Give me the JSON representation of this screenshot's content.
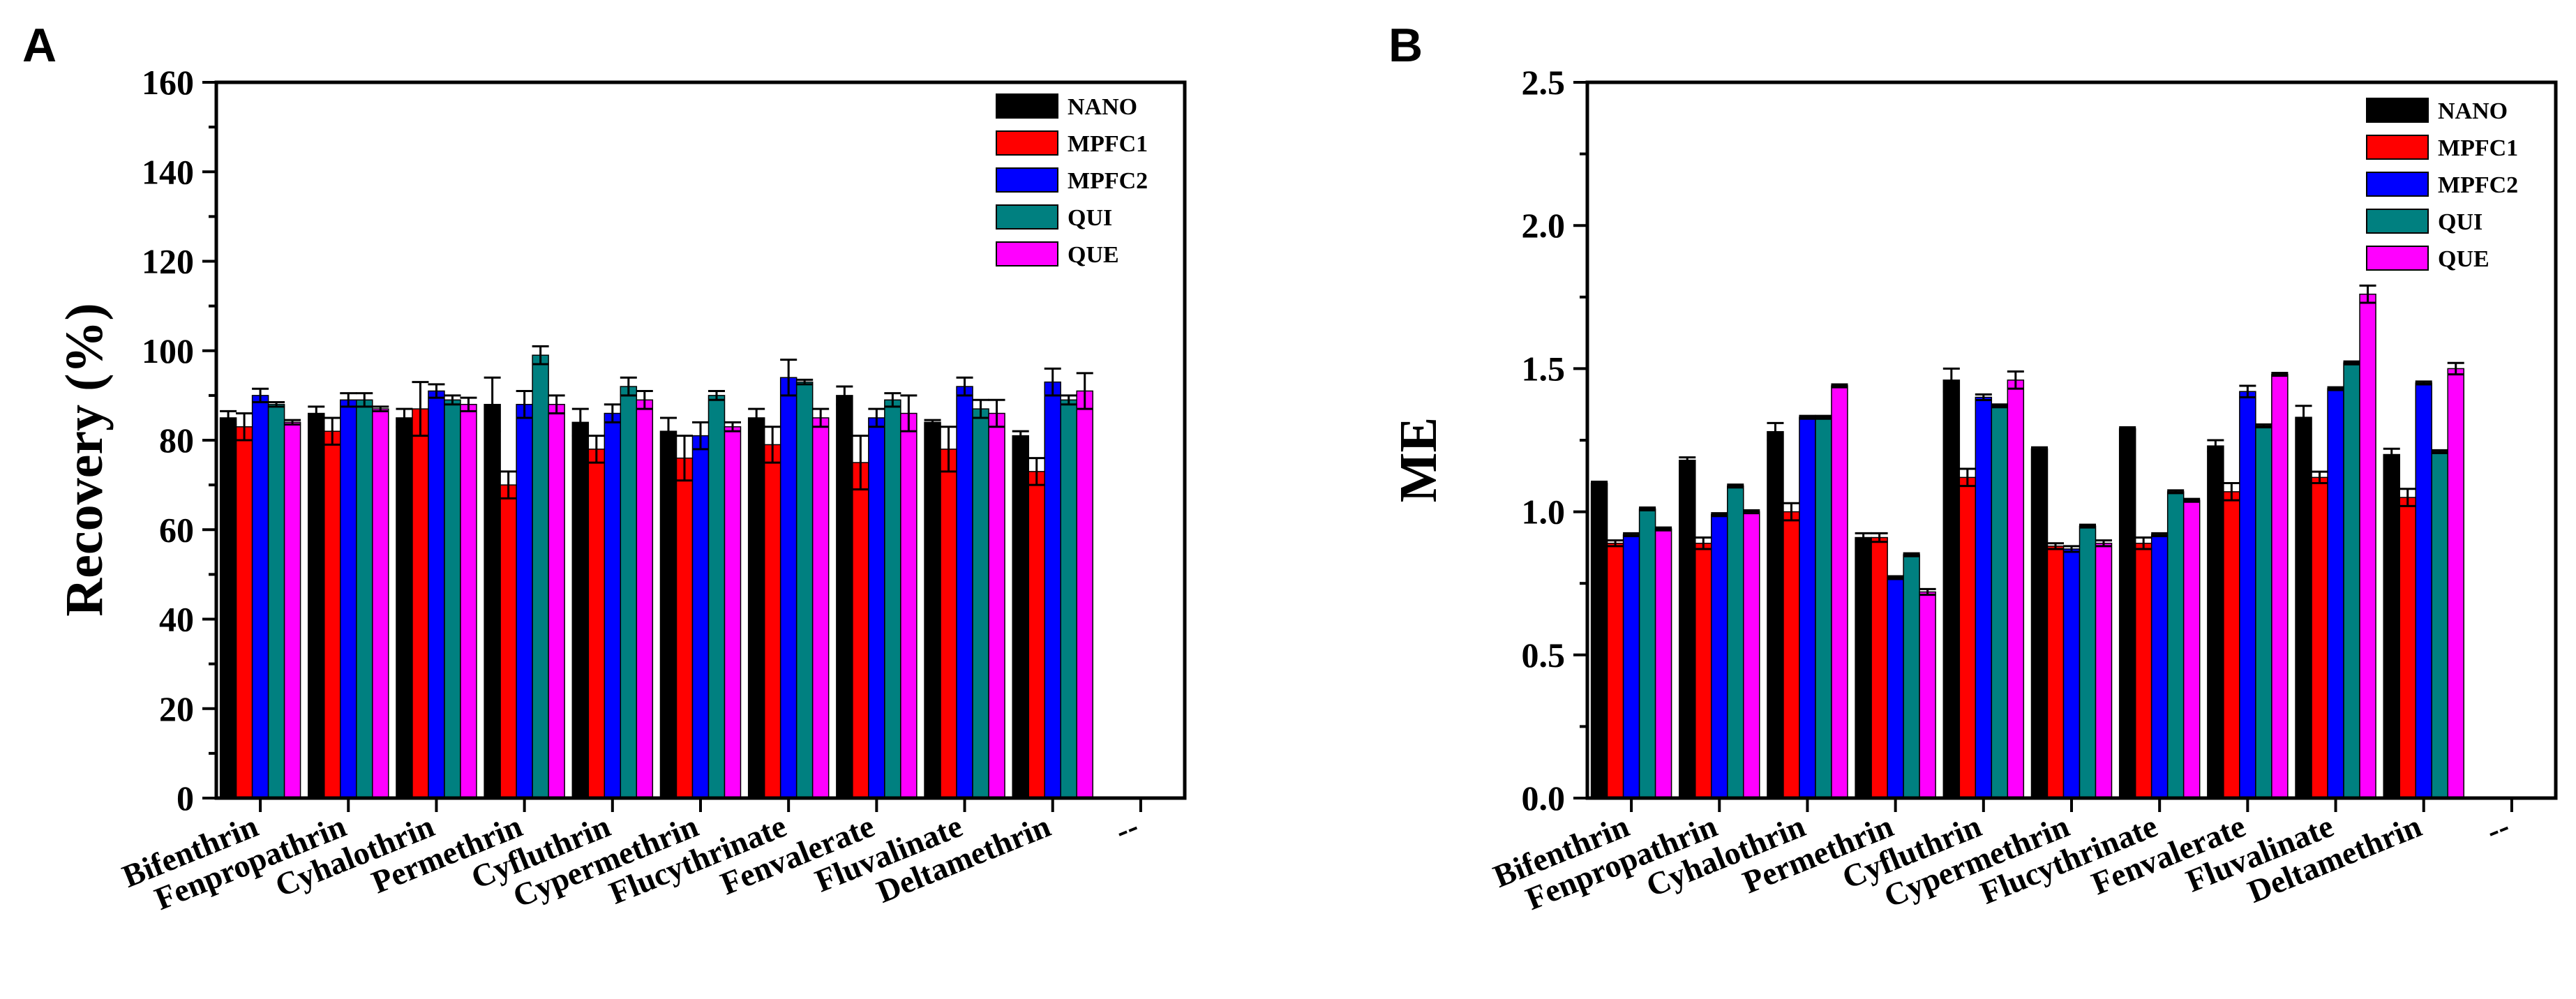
{
  "chart_data": [
    {
      "panel_label": "A",
      "type": "bar",
      "title": "",
      "xlabel": "",
      "ylabel": "Recovery (%)",
      "ylim": [
        0,
        160
      ],
      "yticks": [
        "0",
        "20",
        "40",
        "60",
        "80",
        "100",
        "120",
        "140",
        "160"
      ],
      "grid": false,
      "legend_position": "top-right",
      "categories": [
        "Bifenthrin",
        "Fenpropathrin",
        "Cyhalothrin",
        "Permethrin",
        "Cyfluthrin",
        "Cypermethrin",
        "Flucythrinate",
        "Fenvalerate",
        "Fluvalinate",
        "Deltamethrin",
        "--"
      ],
      "series": [
        {
          "name": "NANO",
          "color": "#000000",
          "values": [
            85,
            86,
            85,
            88,
            84,
            82,
            85,
            90,
            84,
            81,
            null
          ],
          "errors": [
            1.5,
            1.5,
            2,
            6,
            3,
            3,
            2,
            2,
            0.5,
            1,
            null
          ]
        },
        {
          "name": "MPFC1",
          "color": "#ff0000",
          "values": [
            83,
            82,
            87,
            70,
            78,
            76,
            79,
            75,
            78,
            73,
            null
          ],
          "errors": [
            3,
            3,
            6,
            3,
            3,
            5,
            4,
            6,
            5,
            3,
            null
          ]
        },
        {
          "name": "MPFC2",
          "color": "#0000ff",
          "values": [
            90,
            89,
            91,
            88,
            86,
            81,
            94,
            85,
            92,
            93,
            null
          ],
          "errors": [
            1.5,
            1.5,
            1.5,
            3,
            2,
            3,
            4,
            2,
            2,
            3,
            null
          ]
        },
        {
          "name": "QUI",
          "color": "#008080",
          "values": [
            88,
            89,
            89,
            99,
            92,
            90,
            93,
            89,
            87,
            89,
            null
          ],
          "errors": [
            0.5,
            1.5,
            1,
            2,
            2,
            1,
            0.5,
            1.5,
            2,
            1,
            null
          ]
        },
        {
          "name": "QUE",
          "color": "#ff00ff",
          "values": [
            84,
            87,
            88,
            88,
            89,
            83,
            85,
            86,
            86,
            91,
            null
          ],
          "errors": [
            0.5,
            0.5,
            1.5,
            2,
            2,
            1,
            2,
            4,
            3,
            4,
            null
          ]
        }
      ]
    },
    {
      "panel_label": "B",
      "type": "bar",
      "title": "",
      "xlabel": "",
      "ylabel": "ME",
      "ylim": [
        0,
        2.5
      ],
      "yticks": [
        "0.0",
        "0.5",
        "1.0",
        "1.5",
        "2.0",
        "2.5"
      ],
      "grid": false,
      "legend_position": "top-right",
      "categories": [
        "Bifenthrin",
        "Fenpropathrin",
        "Cyhalothrin",
        "Permethrin",
        "Cyfluthrin",
        "Cypermethrin",
        "Flucythrinate",
        "Fenvalerate",
        "Fluvalinate",
        "Deltamethrin",
        "--"
      ],
      "series": [
        {
          "name": "NANO",
          "color": "#000000",
          "values": [
            1.1,
            1.18,
            1.28,
            0.91,
            1.46,
            1.22,
            1.29,
            1.23,
            1.33,
            1.2,
            null
          ],
          "errors": [
            0.005,
            0.01,
            0.03,
            0.015,
            0.04,
            0.005,
            0.005,
            0.02,
            0.04,
            0.02,
            null
          ]
        },
        {
          "name": "MPFC1",
          "color": "#ff0000",
          "values": [
            0.89,
            0.89,
            1.0,
            0.91,
            1.12,
            0.88,
            0.89,
            1.07,
            1.12,
            1.05,
            null
          ],
          "errors": [
            0.01,
            0.02,
            0.03,
            0.015,
            0.03,
            0.01,
            0.02,
            0.03,
            0.02,
            0.03,
            null
          ]
        },
        {
          "name": "MPFC2",
          "color": "#0000ff",
          "values": [
            0.92,
            0.99,
            1.33,
            0.77,
            1.4,
            0.87,
            0.92,
            1.42,
            1.43,
            1.45,
            null
          ],
          "errors": [
            0.005,
            0.005,
            0.005,
            0.005,
            0.01,
            0.01,
            0.005,
            0.02,
            0.005,
            0.005,
            null
          ]
        },
        {
          "name": "QUI",
          "color": "#008080",
          "values": [
            1.01,
            1.09,
            1.33,
            0.85,
            1.37,
            0.95,
            1.07,
            1.3,
            1.52,
            1.21,
            null
          ],
          "errors": [
            0.005,
            0.005,
            0.005,
            0.005,
            0.005,
            0.005,
            0.005,
            0.005,
            0.005,
            0.005,
            null
          ]
        },
        {
          "name": "QUE",
          "color": "#ff00ff",
          "values": [
            0.94,
            1.0,
            1.44,
            0.72,
            1.46,
            0.89,
            1.04,
            1.48,
            1.76,
            1.5,
            null
          ],
          "errors": [
            0.005,
            0.005,
            0.005,
            0.01,
            0.03,
            0.01,
            0.005,
            0.005,
            0.03,
            0.02,
            null
          ]
        }
      ]
    }
  ]
}
